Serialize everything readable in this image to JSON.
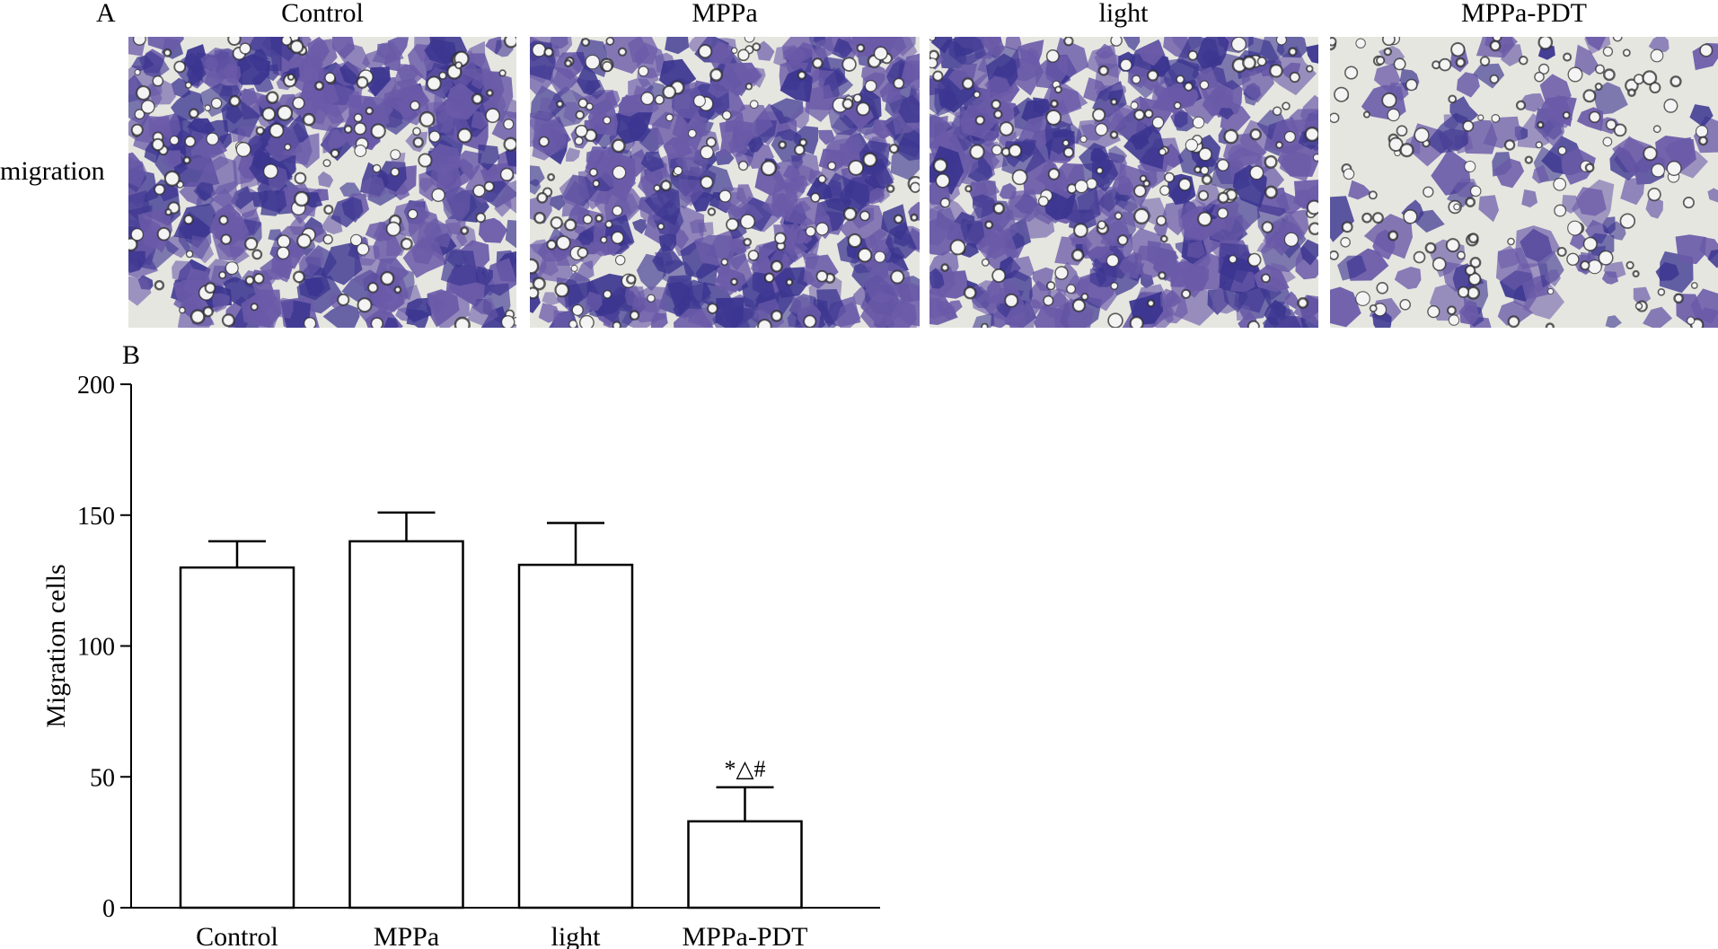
{
  "panel_a": {
    "letter": "A",
    "row_label": "migration",
    "columns": [
      {
        "title": "Control",
        "density": 0.95
      },
      {
        "title": "MPPa",
        "density": 0.97
      },
      {
        "title": "light",
        "density": 0.93
      },
      {
        "title": "MPPa-PDT",
        "density": 0.28
      }
    ],
    "colors": {
      "cell": "#6a5aa8",
      "cell_dark": "#3b3590",
      "background": "#e6e6e0",
      "pore": "#2a2a2a"
    }
  },
  "panel_b": {
    "letter": "B"
  },
  "chart_data": {
    "type": "bar",
    "categories": [
      "Control",
      "MPPa",
      "light",
      "MPPa-PDT"
    ],
    "values": [
      130,
      140,
      131,
      33
    ],
    "errors": [
      10,
      11,
      16,
      13
    ],
    "annotations": [
      "",
      "",
      "",
      "*△#"
    ],
    "title": "",
    "xlabel": "",
    "ylabel": "Migration cells",
    "ylim": [
      0,
      200
    ],
    "yticks": [
      0,
      50,
      100,
      150,
      200
    ],
    "grid": false,
    "bar_fill": "#ffffff",
    "bar_stroke": "#000000"
  }
}
